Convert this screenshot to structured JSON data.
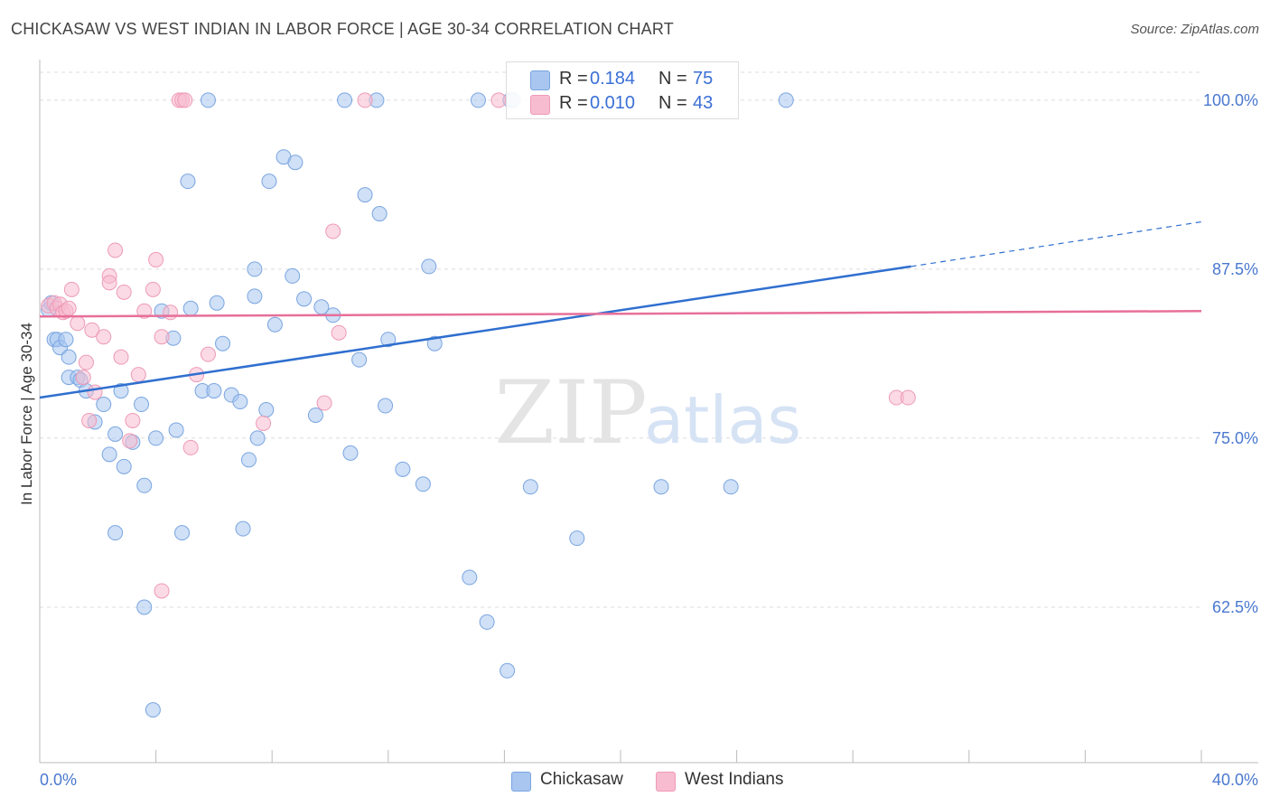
{
  "header": {
    "title": "CHICKASAW VS WEST INDIAN IN LABOR FORCE | AGE 30-34 CORRELATION CHART",
    "source": "Source: ZipAtlas.com"
  },
  "watermark": {
    "zip": "ZIP",
    "atlas": "atlas"
  },
  "legend": {
    "r_label": "R =",
    "n_label": "N =",
    "entries": [
      {
        "name": "Chickasaw",
        "r": "0.184",
        "n": "75",
        "color": "#a8c6f0",
        "stroke": "#7aa5e0"
      },
      {
        "name": "West Indians",
        "r": "0.010",
        "n": "43",
        "color": "#f8bcd0",
        "stroke": "#ee9ab6"
      }
    ]
  },
  "chart_data": {
    "type": "scatter",
    "title": "CHICKASAW VS WEST INDIAN IN LABOR FORCE | AGE 30-34 CORRELATION CHART",
    "xlabel": "",
    "ylabel": "In Labor Force | Age 30-34",
    "xlim": [
      0,
      40
    ],
    "ylim": [
      51,
      103
    ],
    "x_tick_labels": [
      "0.0%",
      "40.0%"
    ],
    "y_ticks": [
      62.5,
      75.0,
      87.5,
      100.0
    ],
    "y_tick_labels": [
      "62.5%",
      "75.0%",
      "87.5%",
      "100.0%"
    ],
    "grid": true,
    "legend_position": "top-center",
    "series": [
      {
        "name": "Chickasaw",
        "color": "#7aa5e0",
        "fill": "#a8c6f0",
        "points": [
          [
            0.3,
            84.5
          ],
          [
            0.4,
            85.0
          ],
          [
            0.5,
            82.3
          ],
          [
            0.6,
            82.3
          ],
          [
            0.7,
            81.7
          ],
          [
            0.9,
            82.3
          ],
          [
            1.0,
            81.0
          ],
          [
            1.0,
            79.5
          ],
          [
            1.3,
            79.5
          ],
          [
            1.4,
            79.3
          ],
          [
            1.6,
            78.5
          ],
          [
            1.9,
            76.2
          ],
          [
            2.2,
            77.5
          ],
          [
            2.4,
            73.8
          ],
          [
            2.6,
            75.3
          ],
          [
            2.8,
            78.5
          ],
          [
            2.9,
            72.9
          ],
          [
            3.2,
            74.7
          ],
          [
            3.5,
            77.5
          ],
          [
            3.6,
            71.5
          ],
          [
            4.0,
            75.0
          ],
          [
            4.2,
            84.4
          ],
          [
            4.6,
            82.4
          ],
          [
            4.7,
            75.6
          ],
          [
            4.9,
            68.0
          ],
          [
            5.1,
            94.0
          ],
          [
            5.2,
            84.6
          ],
          [
            5.6,
            78.5
          ],
          [
            6.0,
            78.5
          ],
          [
            6.1,
            85.0
          ],
          [
            6.3,
            82.0
          ],
          [
            6.6,
            78.2
          ],
          [
            6.9,
            77.7
          ],
          [
            7.2,
            73.4
          ],
          [
            7.4,
            85.5
          ],
          [
            7.4,
            87.5
          ],
          [
            7.5,
            75.0
          ],
          [
            7.8,
            77.1
          ],
          [
            7.9,
            94.0
          ],
          [
            8.1,
            83.4
          ],
          [
            8.4,
            95.8
          ],
          [
            8.7,
            87.0
          ],
          [
            8.8,
            95.4
          ],
          [
            9.1,
            85.3
          ],
          [
            9.5,
            76.7
          ],
          [
            9.7,
            84.7
          ],
          [
            10.1,
            84.1
          ],
          [
            10.7,
            73.9
          ],
          [
            11.0,
            80.8
          ],
          [
            11.2,
            93.0
          ],
          [
            11.7,
            91.6
          ],
          [
            11.9,
            77.4
          ],
          [
            12.0,
            82.3
          ],
          [
            12.5,
            72.7
          ],
          [
            13.2,
            71.6
          ],
          [
            13.4,
            87.7
          ],
          [
            13.6,
            82.0
          ],
          [
            14.8,
            64.7
          ],
          [
            15.4,
            61.4
          ],
          [
            16.1,
            57.8
          ],
          [
            16.9,
            71.4
          ],
          [
            18.5,
            67.6
          ],
          [
            21.4,
            71.4
          ],
          [
            23.8,
            71.4
          ],
          [
            3.6,
            62.5
          ],
          [
            3.9,
            54.9
          ],
          [
            2.6,
            68.0
          ],
          [
            7.0,
            68.3
          ],
          [
            5.8,
            100.0
          ],
          [
            10.5,
            100.0
          ],
          [
            11.6,
            100.0
          ],
          [
            15.1,
            100.0
          ],
          [
            16.2,
            100.0
          ],
          [
            16.3,
            100.0
          ],
          [
            25.7,
            100.0
          ]
        ]
      },
      {
        "name": "West Indians",
        "color": "#ee9ab6",
        "fill": "#f8bcd0",
        "points": [
          [
            0.3,
            84.8
          ],
          [
            0.5,
            85.0
          ],
          [
            0.6,
            84.6
          ],
          [
            0.7,
            84.9
          ],
          [
            0.8,
            84.3
          ],
          [
            0.9,
            84.4
          ],
          [
            1.0,
            84.6
          ],
          [
            1.1,
            86.0
          ],
          [
            1.3,
            83.5
          ],
          [
            1.5,
            79.5
          ],
          [
            1.6,
            80.6
          ],
          [
            1.7,
            76.3
          ],
          [
            1.9,
            78.4
          ],
          [
            1.8,
            83.0
          ],
          [
            2.2,
            82.5
          ],
          [
            2.4,
            87.0
          ],
          [
            2.4,
            86.5
          ],
          [
            2.6,
            88.9
          ],
          [
            2.8,
            81.0
          ],
          [
            2.9,
            85.8
          ],
          [
            3.1,
            74.8
          ],
          [
            3.2,
            76.3
          ],
          [
            3.4,
            79.7
          ],
          [
            3.6,
            84.4
          ],
          [
            3.9,
            86.0
          ],
          [
            4.0,
            88.2
          ],
          [
            4.2,
            82.5
          ],
          [
            4.5,
            84.3
          ],
          [
            4.2,
            63.7
          ],
          [
            5.2,
            74.3
          ],
          [
            5.4,
            79.7
          ],
          [
            5.8,
            81.2
          ],
          [
            7.7,
            76.1
          ],
          [
            9.8,
            77.6
          ],
          [
            10.1,
            90.3
          ],
          [
            10.3,
            82.8
          ],
          [
            4.8,
            100.0
          ],
          [
            4.9,
            100.0
          ],
          [
            5.0,
            100.0
          ],
          [
            11.2,
            100.0
          ],
          [
            15.8,
            100.0
          ],
          [
            29.5,
            78.0
          ],
          [
            29.9,
            78.0
          ]
        ]
      }
    ],
    "trend_lines": [
      {
        "series": "Chickasaw",
        "from": [
          0,
          78.0
        ],
        "to": [
          30.0,
          87.7
        ],
        "dashed_to": [
          40.0,
          91.0
        ]
      },
      {
        "series": "West Indians",
        "from": [
          0,
          84.0
        ],
        "to": [
          40.0,
          84.4
        ]
      }
    ]
  }
}
